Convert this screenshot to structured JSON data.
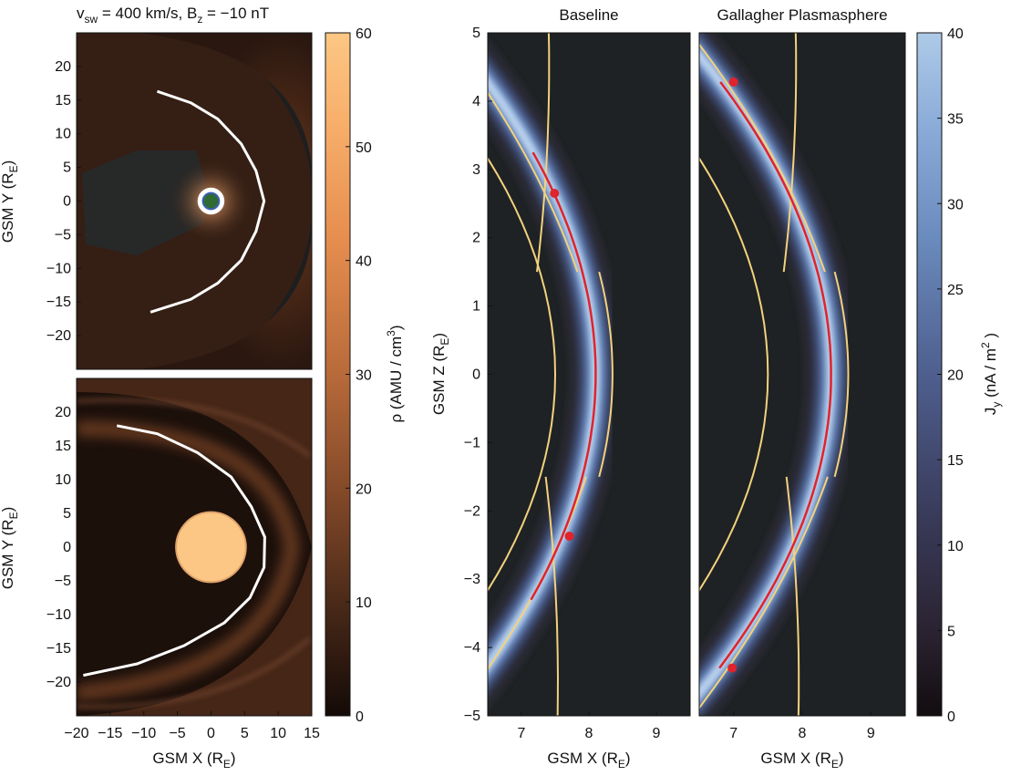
{
  "figure_title": {
    "v_main": "v",
    "v_sub": "sw",
    "v_rest": " = 400 km/s,   B",
    "b_sub": "z",
    "b_rest": " = −10 nT"
  },
  "colors": {
    "panel_bg": "#1f2224",
    "jy_dark": "#1a1419",
    "jy_light": "#a9c4e3",
    "rho_dark": "#1a0f0a",
    "rho_light": "#fcc784",
    "separatrix": "#f3d27d",
    "current_sheet_line": "#e0232c",
    "magnetopause": "#ffffff"
  },
  "chart_data": [
    {
      "type": "heatmap",
      "id": "rho_xy_top",
      "xlabel": {
        "main": "GSM X (R",
        "sub": "E",
        "end": ")"
      },
      "ylabel": {
        "main": "GSM Y (R",
        "sub": "E",
        "end": ")"
      },
      "xlim": [
        -20,
        15
      ],
      "ylim": [
        -25,
        25
      ],
      "xticks": [
        -20,
        -15,
        -10,
        -5,
        0,
        5,
        10,
        15
      ],
      "yticks": [
        -20,
        -15,
        -10,
        -5,
        0,
        5,
        10,
        15,
        20
      ],
      "magnetopause_curve": [
        [
          -8,
          16.3
        ],
        [
          -3,
          14.6
        ],
        [
          1,
          12.2
        ],
        [
          4.5,
          8.5
        ],
        [
          6.7,
          4.5
        ],
        [
          7.9,
          0
        ],
        [
          6.7,
          -4.5
        ],
        [
          4.5,
          -8.8
        ],
        [
          1,
          -12.2
        ],
        [
          -3,
          -14.6
        ],
        [
          -9,
          -16.5
        ]
      ],
      "dense_core_center": [
        0,
        0
      ],
      "dense_core_radius": 2
    },
    {
      "type": "heatmap",
      "id": "rho_xy_bottom",
      "xlabel": {
        "main": "GSM X (R",
        "sub": "E",
        "end": ")"
      },
      "ylabel": {
        "main": "GSM Y (R",
        "sub": "E",
        "end": ")"
      },
      "xlim": [
        -20,
        15
      ],
      "ylim": [
        -25,
        25
      ],
      "xticks": [
        -20,
        -15,
        -10,
        -5,
        0,
        5,
        10,
        15
      ],
      "xticklabels": [
        "−20",
        "−15",
        "−10",
        "−5",
        "0",
        "5",
        "10",
        "15"
      ],
      "yticks": [
        -20,
        -15,
        -10,
        -5,
        0,
        5,
        10,
        15,
        20
      ],
      "magnetopause_curve": [
        [
          -14,
          18
        ],
        [
          -8,
          16.8
        ],
        [
          -2,
          14
        ],
        [
          3,
          10.4
        ],
        [
          6,
          6
        ],
        [
          8,
          1.5
        ],
        [
          7.9,
          -3
        ],
        [
          5.8,
          -7.5
        ],
        [
          2,
          -11.2
        ],
        [
          -4,
          -14.6
        ],
        [
          -11,
          -17.3
        ],
        [
          -19,
          -19
        ]
      ],
      "plasmasphere_center": [
        0,
        0
      ],
      "plasmasphere_radius": 5.2
    },
    {
      "type": "heatmap",
      "id": "rho_colorbar",
      "label": {
        "main": "ρ (AMU / cm",
        "sup": "3",
        "end": ")"
      },
      "range": [
        0,
        60
      ],
      "ticks": [
        0,
        10,
        20,
        30,
        40,
        50,
        60
      ]
    },
    {
      "type": "heatmap",
      "id": "jy_baseline",
      "title": "Baseline",
      "xlabel": {
        "main": "GSM X (R",
        "sub": "E",
        "end": ")"
      },
      "ylabel": {
        "main": "GSM Z (R",
        "sub": "E",
        "end": ")"
      },
      "xlim": [
        6.5,
        9.5
      ],
      "ylim": [
        -5,
        5
      ],
      "xticks": [
        7,
        8,
        9
      ],
      "yticks": [
        -5,
        -4,
        -3,
        -2,
        -1,
        0,
        1,
        2,
        3,
        4,
        5
      ],
      "current_sheet": {
        "center_x": 8.1,
        "curvature": 0.088
      },
      "red_line": {
        "z_top": 3.25,
        "z_bottom": -3.3
      },
      "red_points": [
        [
          7.49,
          2.65
        ],
        [
          7.71,
          -2.37
        ]
      ],
      "separatrix_cusps": [
        [
          7.83,
          1.5
        ],
        [
          7.96,
          -1.5
        ]
      ]
    },
    {
      "type": "heatmap",
      "id": "jy_gallagher",
      "title": "Gallagher Plasmasphere",
      "xlabel": {
        "main": "GSM X (R",
        "sub": "E",
        "end": ")"
      },
      "xlim": [
        6.5,
        9.5
      ],
      "ylim": [
        -5,
        5
      ],
      "xticks": [
        7,
        8,
        9
      ],
      "current_sheet": {
        "center_x": 8.42,
        "curvature": 0.088
      },
      "red_line": {
        "z_top": 4.28,
        "z_bottom": -4.3
      },
      "red_points": [
        [
          7.0,
          4.28
        ],
        [
          6.98,
          -4.3
        ]
      ],
      "separatrix_cusps": [
        [
          8.33,
          1.5
        ],
        [
          8.37,
          -1.5
        ]
      ]
    },
    {
      "type": "heatmap",
      "id": "jy_colorbar",
      "label": {
        "main": "J",
        "sub": "y",
        "mid": " (nA / m",
        "sup": "2",
        "end": " )"
      },
      "range": [
        0,
        40
      ],
      "ticks": [
        0,
        5,
        10,
        15,
        20,
        25,
        30,
        35,
        40
      ]
    }
  ]
}
